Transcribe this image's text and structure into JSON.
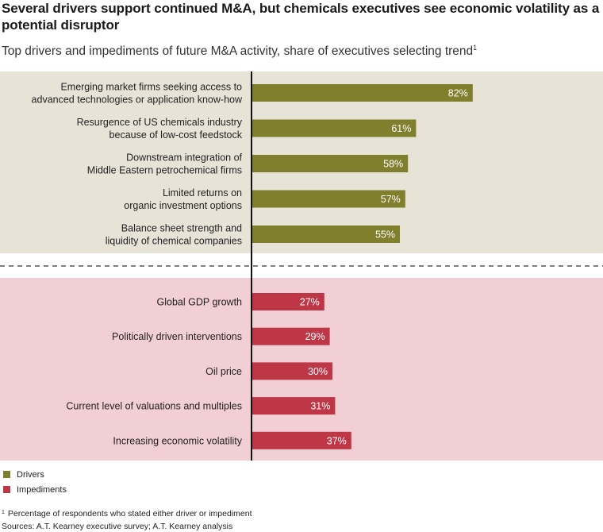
{
  "colors": {
    "drivers_bg": "#e7e3d7",
    "impediments_bg": "#f2cfd5",
    "drivers_bar": "#7f7f2e",
    "impediments_bar": "#bd3747",
    "axis": "#111111"
  },
  "chart_data": {
    "type": "bar",
    "orientation": "horizontal",
    "title": "Several drivers support continued M&A, but chemicals executives see economic volatility as a potential disruptor",
    "subtitle": "Top drivers and impediments of future M&A activity, share of executives selecting trend",
    "subtitle_marker": "1",
    "unit": "%",
    "groups": [
      {
        "name": "Drivers",
        "items": [
          {
            "label": [
              "Emerging market firms seeking access to",
              "advanced technologies or application know-how"
            ],
            "value": 82
          },
          {
            "label": [
              "Resurgence of US chemicals industry",
              "because of low-cost feedstock"
            ],
            "value": 61
          },
          {
            "label": [
              "Downstream integration of",
              "Middle Eastern petrochemical firms"
            ],
            "value": 58
          },
          {
            "label": [
              "Limited returns on",
              "organic investment options"
            ],
            "value": 57
          },
          {
            "label": [
              "Balance sheet strength and",
              "liquidity of chemical companies"
            ],
            "value": 55
          }
        ]
      },
      {
        "name": "Impediments",
        "items": [
          {
            "label": [
              "Global GDP growth"
            ],
            "value": 27
          },
          {
            "label": [
              "Politically driven interventions"
            ],
            "value": 29
          },
          {
            "label": [
              "Oil price"
            ],
            "value": 30
          },
          {
            "label": [
              "Current level of valuations and multiples"
            ],
            "value": 31
          },
          {
            "label": [
              "Increasing economic volatility"
            ],
            "value": 37
          }
        ]
      }
    ],
    "legend": [
      "Drivers",
      "Impediments"
    ],
    "xlim": [
      0,
      100
    ]
  },
  "footnote": {
    "marker": "1",
    "text": "Percentage of respondents who stated either driver or impediment"
  },
  "sources": "Sources: A.T. Kearney executive survey; A.T. Kearney analysis"
}
